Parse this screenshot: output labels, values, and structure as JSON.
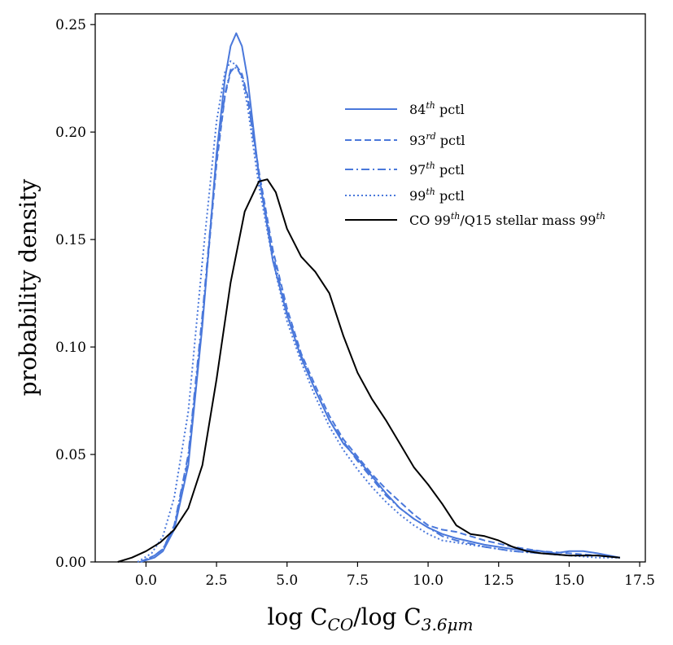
{
  "chart_data": {
    "type": "line",
    "title": "",
    "xlabel": {
      "main1": "log C",
      "sub1": "CO",
      "main2": "/log C",
      "sub2": "3.6μm"
    },
    "ylabel": "probability density",
    "xlim": [
      -1.8,
      17.7
    ],
    "ylim": [
      0,
      0.255
    ],
    "xticks": [
      0.0,
      2.5,
      5.0,
      7.5,
      10.0,
      12.5,
      15.0,
      17.5
    ],
    "xtick_labels": [
      "0.0",
      "2.5",
      "5.0",
      "7.5",
      "10.0",
      "12.5",
      "15.0",
      "17.5"
    ],
    "yticks": [
      0.0,
      0.05,
      0.1,
      0.15,
      0.2,
      0.25
    ],
    "ytick_labels": [
      "0.00",
      "0.05",
      "0.10",
      "0.15",
      "0.20",
      "0.25"
    ],
    "legend": {
      "position": "upper-right",
      "entries": [
        {
          "base": "84",
          "sup": "th",
          "rest": " pctl"
        },
        {
          "base": "93",
          "sup": "rd",
          "rest": " pctl"
        },
        {
          "base": "97",
          "sup": "th",
          "rest": " pctl"
        },
        {
          "base": "99",
          "sup": "th",
          "rest": " pctl"
        },
        {
          "base": "CO 99",
          "sup": "th",
          "rest": "/Q15 stellar mass 99",
          "sup2": "th"
        }
      ]
    },
    "series": [
      {
        "name": "84th pctl",
        "color": "#4a78db",
        "dash": "",
        "x": [
          -0.2,
          0.3,
          0.6,
          1.0,
          1.5,
          2.0,
          2.5,
          2.8,
          3.0,
          3.2,
          3.4,
          3.6,
          4.0,
          4.5,
          5.0,
          5.5,
          6.0,
          6.5,
          7.0,
          7.5,
          8.0,
          8.5,
          9.0,
          9.5,
          10.0,
          10.5,
          11.0,
          12.0,
          13.0,
          14.0,
          14.5,
          15.0,
          15.5,
          16.0,
          16.8
        ],
        "y": [
          0.0,
          0.002,
          0.005,
          0.015,
          0.045,
          0.11,
          0.19,
          0.225,
          0.24,
          0.246,
          0.24,
          0.225,
          0.18,
          0.14,
          0.115,
          0.095,
          0.08,
          0.066,
          0.055,
          0.048,
          0.04,
          0.032,
          0.025,
          0.02,
          0.016,
          0.013,
          0.011,
          0.008,
          0.006,
          0.005,
          0.004,
          0.005,
          0.005,
          0.004,
          0.002
        ]
      },
      {
        "name": "93rd pctl",
        "color": "#4a78db",
        "dash": "8,4",
        "x": [
          -0.2,
          0.3,
          0.6,
          1.0,
          1.5,
          2.0,
          2.5,
          2.8,
          3.0,
          3.2,
          3.4,
          3.6,
          4.0,
          4.5,
          5.0,
          5.5,
          6.0,
          6.5,
          7.0,
          7.5,
          8.0,
          8.5,
          9.0,
          9.5,
          10.0,
          10.5,
          11.0,
          12.0,
          13.0,
          14.0,
          15.0,
          16.0,
          16.8
        ],
        "y": [
          0.0,
          0.003,
          0.006,
          0.016,
          0.048,
          0.112,
          0.185,
          0.217,
          0.228,
          0.231,
          0.227,
          0.217,
          0.182,
          0.145,
          0.118,
          0.097,
          0.082,
          0.068,
          0.057,
          0.049,
          0.041,
          0.034,
          0.028,
          0.022,
          0.017,
          0.015,
          0.014,
          0.01,
          0.007,
          0.005,
          0.004,
          0.003,
          0.002
        ]
      },
      {
        "name": "97th pctl",
        "color": "#4a78db",
        "dash": "10,4,2,4",
        "x": [
          -0.2,
          0.3,
          0.6,
          1.0,
          1.5,
          2.0,
          2.5,
          2.8,
          3.0,
          3.2,
          3.4,
          3.6,
          4.0,
          4.5,
          5.0,
          5.5,
          6.0,
          6.5,
          7.0,
          7.5,
          8.0,
          8.5,
          9.0,
          9.5,
          10.0,
          10.5,
          11.0,
          12.0,
          13.0,
          14.0,
          15.0,
          16.0,
          16.8
        ],
        "y": [
          0.0,
          0.003,
          0.006,
          0.017,
          0.05,
          0.115,
          0.188,
          0.218,
          0.229,
          0.23,
          0.226,
          0.216,
          0.18,
          0.143,
          0.116,
          0.096,
          0.08,
          0.066,
          0.056,
          0.047,
          0.039,
          0.031,
          0.025,
          0.02,
          0.016,
          0.012,
          0.01,
          0.007,
          0.005,
          0.004,
          0.003,
          0.003,
          0.002
        ]
      },
      {
        "name": "99th pctl",
        "color": "#4a78db",
        "dash": "2,3",
        "x": [
          -0.3,
          0.2,
          0.6,
          1.0,
          1.5,
          2.0,
          2.5,
          2.8,
          3.0,
          3.2,
          3.4,
          3.6,
          4.0,
          4.5,
          5.0,
          5.5,
          6.0,
          6.5,
          7.0,
          7.5,
          8.0,
          8.5,
          9.0,
          9.5,
          10.0,
          10.5,
          11.0,
          12.0,
          13.0,
          14.0,
          15.0,
          16.0,
          16.8
        ],
        "y": [
          0.0,
          0.004,
          0.012,
          0.03,
          0.07,
          0.14,
          0.205,
          0.228,
          0.233,
          0.231,
          0.225,
          0.212,
          0.175,
          0.14,
          0.112,
          0.093,
          0.077,
          0.063,
          0.052,
          0.043,
          0.035,
          0.028,
          0.022,
          0.017,
          0.013,
          0.01,
          0.009,
          0.007,
          0.005,
          0.004,
          0.003,
          0.002,
          0.002
        ]
      },
      {
        "name": "CO 99th/Q15 stellar mass 99th",
        "color": "#000000",
        "dash": "",
        "x": [
          -1.0,
          -0.5,
          0.0,
          0.5,
          1.0,
          1.5,
          2.0,
          2.5,
          3.0,
          3.5,
          4.0,
          4.3,
          4.6,
          5.0,
          5.5,
          6.0,
          6.5,
          7.0,
          7.5,
          8.0,
          8.5,
          9.0,
          9.5,
          10.0,
          10.5,
          11.0,
          11.5,
          12.0,
          12.5,
          13.0,
          13.5,
          14.0,
          15.0,
          16.0,
          16.8
        ],
        "y": [
          0.0,
          0.002,
          0.005,
          0.009,
          0.015,
          0.025,
          0.045,
          0.085,
          0.13,
          0.163,
          0.177,
          0.178,
          0.172,
          0.155,
          0.142,
          0.135,
          0.125,
          0.105,
          0.088,
          0.076,
          0.066,
          0.055,
          0.044,
          0.036,
          0.027,
          0.017,
          0.013,
          0.012,
          0.01,
          0.007,
          0.005,
          0.004,
          0.003,
          0.003,
          0.002
        ]
      }
    ]
  }
}
